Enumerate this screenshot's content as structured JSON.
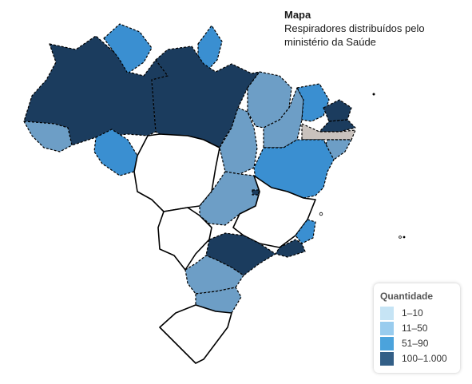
{
  "title": "Mapa",
  "subtitle_lines": [
    "Respiradores distribuídos pelo",
    "ministério da Saúde"
  ],
  "legend": {
    "title": "Quantidade",
    "items": [
      {
        "label": "1–10",
        "color": "#c6e4f5"
      },
      {
        "label": "11–50",
        "color": "#99ccee"
      },
      {
        "label": "51–90",
        "color": "#4ba3dc"
      },
      {
        "label": "100–1.000",
        "color": "#335f87"
      }
    ]
  },
  "colors": {
    "dark": "#1b3c5e",
    "medium": "#3a8fd1",
    "light": "#6d9ec6",
    "none": "#ffffff",
    "gray": "#c9c2bd"
  }
}
